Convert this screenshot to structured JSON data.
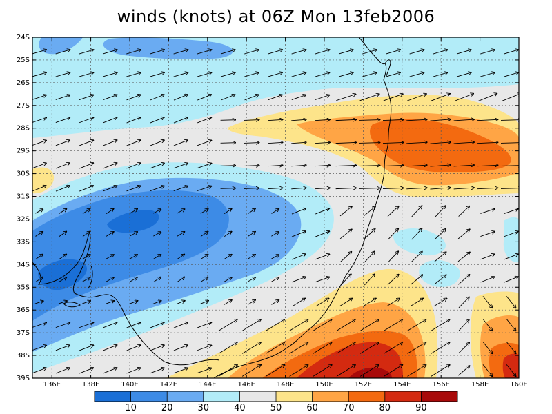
{
  "title": "winds (knots) at 06Z Mon 13feb2006",
  "axes": {
    "lat_labels": [
      "24S",
      "25S",
      "26S",
      "27S",
      "28S",
      "29S",
      "30S",
      "31S",
      "32S",
      "33S",
      "34S",
      "35S",
      "36S",
      "37S",
      "38S",
      "39S"
    ],
    "lon_labels": [
      "136E",
      "138E",
      "140E",
      "142E",
      "144E",
      "146E",
      "148E",
      "150E",
      "152E",
      "154E",
      "156E",
      "158E",
      "160E"
    ],
    "lat_range": [
      -39,
      -24
    ],
    "lon_range": [
      135,
      160
    ]
  },
  "colorbar": {
    "colors": [
      "#1a6fd6",
      "#3d8be6",
      "#6aabf2",
      "#b2ecf8",
      "#e8e8e8",
      "#fde48a",
      "#ffa545",
      "#f36a10",
      "#d42a10",
      "#a80a0a"
    ],
    "tick_labels": [
      "10",
      "20",
      "30",
      "40",
      "50",
      "60",
      "70",
      "80",
      "90"
    ]
  },
  "field": {
    "units": "knots",
    "bands": [
      {
        "range": "<10",
        "color": "#1a6fd6"
      },
      {
        "range": "10-20",
        "color": "#3d8be6"
      },
      {
        "range": "20-30",
        "color": "#6aabf2"
      },
      {
        "range": "30-40",
        "color": "#b2ecf8"
      },
      {
        "range": "40-50",
        "color": "#e8e8e8"
      },
      {
        "range": "50-60",
        "color": "#fde48a"
      },
      {
        "range": "60-70",
        "color": "#ffa545"
      },
      {
        "range": "70-80",
        "color": "#f36a10"
      },
      {
        "range": "80-90",
        "color": "#d42a10"
      },
      {
        "range": ">90",
        "color": "#a80a0a"
      }
    ],
    "vector_field": "wind arrows mostly westerly to south-westerly"
  }
}
